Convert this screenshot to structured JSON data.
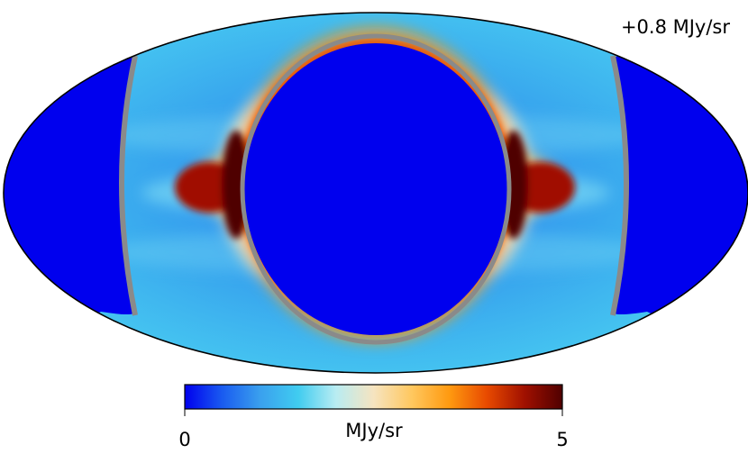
{
  "map": {
    "annotation": "+0.8 MJy/sr",
    "projection": "mollweide"
  },
  "colorbar": {
    "min_label": "0",
    "max_label": "5",
    "unit_label": "MJy/sr",
    "min_value": 0,
    "max_value": 5,
    "colors": [
      "#0000ee",
      "#1a5cf0",
      "#3aa0ee",
      "#40ccf0",
      "#b8ecf2",
      "#f6e4c0",
      "#ffc860",
      "#ff9a10",
      "#e84a00",
      "#a01000",
      "#500000"
    ]
  },
  "colors": {
    "background_blue": "#0000ee",
    "ring_gray": "#8a8a8a",
    "outline": "#000000"
  }
}
